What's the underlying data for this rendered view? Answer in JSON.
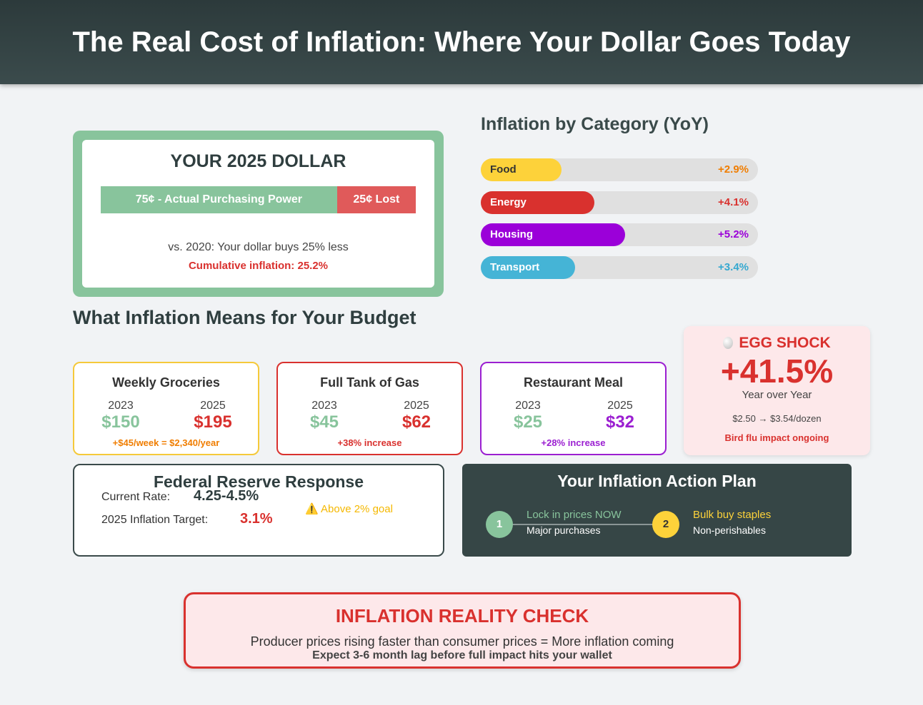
{
  "header": {
    "title": "The Real Cost of Inflation: Where Your Dollar Goes Today"
  },
  "dollar_card": {
    "title": "YOUR 2025 DOLLAR",
    "segments": [
      {
        "label": "75¢ - Actual Purchasing Power",
        "value": 75,
        "color": "#88c49c"
      },
      {
        "label": "25¢ Lost",
        "value": 25,
        "color": "#e05a5a"
      }
    ],
    "xlim": [
      0,
      100
    ],
    "note": "vs. 2020: Your dollar buys 25% less",
    "cumulative": "Cumulative inflation: 25.2%"
  },
  "inflation_by_category": {
    "title": "Inflation by Category (YoY)",
    "categories": [
      "Food",
      "Energy",
      "Housing",
      "Transport"
    ],
    "values": [
      2.9,
      4.1,
      5.2,
      3.4
    ],
    "value_labels": [
      "+2.9%",
      "+4.1%",
      "+5.2%",
      "+3.4%"
    ],
    "colors": [
      "#fdd23a",
      "#d9312e",
      "#9b00d9",
      "#45b4d6"
    ],
    "label_colors": [
      "#f07d00",
      "#d9312e",
      "#9b00d9",
      "#35a8d0"
    ],
    "xlim": [
      0,
      10
    ]
  },
  "budget": {
    "title": "What Inflation Means for Your Budget",
    "cards": [
      {
        "title": "Weekly Groceries",
        "year_a": "2023",
        "year_b": "2025",
        "price_a": "$150",
        "price_b": "$195",
        "note": "+$45/week = $2,340/year",
        "color": "#f5c93a"
      },
      {
        "title": "Full Tank of Gas",
        "year_a": "2023",
        "year_b": "2025",
        "price_a": "$45",
        "price_b": "$62",
        "note": "+38% increase",
        "color": "#d9312e"
      },
      {
        "title": "Restaurant Meal",
        "year_a": "2023",
        "year_b": "2025",
        "price_a": "$25",
        "price_b": "$32",
        "note": "+28% increase",
        "color": "#9b1fd1"
      }
    ],
    "egg": {
      "title": "EGG SHOCK",
      "value": "+41.5%",
      "subtitle": "Year over Year",
      "prices": "$2.50 → $3.54/dozen",
      "note": "Bird flu impact ongoing"
    }
  },
  "fed": {
    "title": "Federal Reserve Response",
    "rate_label": "Current Rate:",
    "rate_value": "4.25-4.5%",
    "target_label": "2025 Inflation Target:",
    "target_value": "3.1%",
    "warning": "⚠️ Above 2% goal"
  },
  "action_plan": {
    "title": "Your Inflation Action Plan",
    "steps": [
      {
        "number": "1",
        "title": "Lock in prices NOW",
        "detail": "Major purchases"
      },
      {
        "number": "2",
        "title": "Bulk buy staples",
        "detail": "Non-perishables"
      }
    ]
  },
  "reality_check": {
    "title": "INFLATION REALITY CHECK",
    "line1": "Producer prices rising faster than consumer prices = More inflation coming",
    "line2": "Expect 3-6 month lag before full impact hits your wallet"
  }
}
